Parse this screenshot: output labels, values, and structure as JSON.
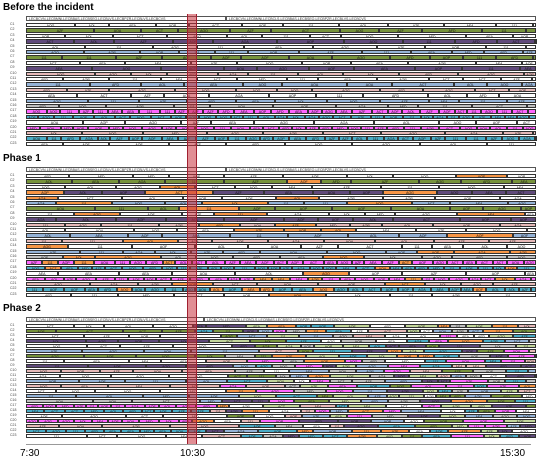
{
  "sections": [
    {
      "title": "Before the incident",
      "headers": [
        "LECBCVN-LECBMNI-LECBBAS-LECBSEO-LECBLVS-LECBPZR-LECBLVS-LECBCVS",
        "LECBCVN-LECBMNI-LECBCLS-LECBBAS-LECBSEO-LECBPZR-LECBLVS-LECBCVS"
      ],
      "rows": [
        "C1",
        "C2",
        "C3",
        "C4",
        "C5",
        "C6",
        "C7",
        "C8",
        "C9",
        "C10",
        "C11",
        "C12",
        "C13",
        "C14",
        "C15",
        "C16",
        "C17",
        "C18",
        "C19",
        "C20",
        "C21",
        "C22",
        "C23"
      ],
      "label_set": [
        "111",
        "AZF",
        "AOL",
        "AFD",
        "ACT",
        "AEA",
        "AOG",
        "AOQ",
        "AOF",
        "AOP",
        "AOA"
      ]
    },
    {
      "title": "Phase 1",
      "headers": [
        "LECBCVN-LECBMNI-LECBBAS-LECBSEO-LECBLVS-LECBPZR-LECBLVS-LECBCVS",
        "LECBCVN-LECBMNI-LECBCLS-LECBBAS-LECBSEO-LECBPZR-LECBLVS-LECBCVS"
      ],
      "rows": [
        "C1",
        "C2",
        "C3",
        "C4",
        "C5",
        "C6",
        "C7",
        "C8",
        "C9",
        "C10",
        "C11",
        "C12",
        "C13",
        "C14",
        "C15",
        "C16",
        "C17",
        "C18",
        "C19",
        "C20",
        "C21",
        "C22",
        "C23"
      ],
      "label_set": [
        "111",
        "AZF",
        "AOL",
        "AFD",
        "ACT",
        "AEA",
        "AOG",
        "AOQ",
        "AOF",
        "AOP",
        "AOA"
      ]
    },
    {
      "title": "Phase 2",
      "headers": [
        "LECBCVN-LECBMNI-LECBBAS-LECBSEO-LECBLVS-LECBPZR-LECBLVS-LECBCVS",
        "LECBCVN-LECBMNI-LECBCLS-LECBBAS-LECBSEO-LECBPZR-LECBLVS-LECBCVS"
      ],
      "rows": [
        "C1",
        "C2",
        "C3",
        "C4",
        "C5",
        "C6",
        "C7",
        "C8",
        "C9",
        "C10",
        "C11",
        "C12",
        "C13",
        "C14",
        "C15",
        "C16",
        "C17",
        "C18",
        "C19",
        "C20",
        "C21",
        "C22",
        "C23"
      ],
      "label_set": [
        "111",
        "AZF",
        "AOL",
        "AFD",
        "ACT",
        "AEA",
        "AOG",
        "AOQ",
        "AOF",
        "AOP",
        "AOA"
      ]
    }
  ],
  "axis": {
    "start": "7:30",
    "incident": "10:30",
    "end": "15:30"
  },
  "colors": {
    "green": "#77933c",
    "purple": "#604a7b",
    "blue": "#95b3d7",
    "salmon": "#e6b9b8",
    "orange": "#f79646",
    "teal": "#4bacc6",
    "magenta": "#ff66ff",
    "white": "#ffffff",
    "gray": "#bfbfbf",
    "lightgreen": "#c3d69b",
    "incident": "#c8323c"
  }
}
